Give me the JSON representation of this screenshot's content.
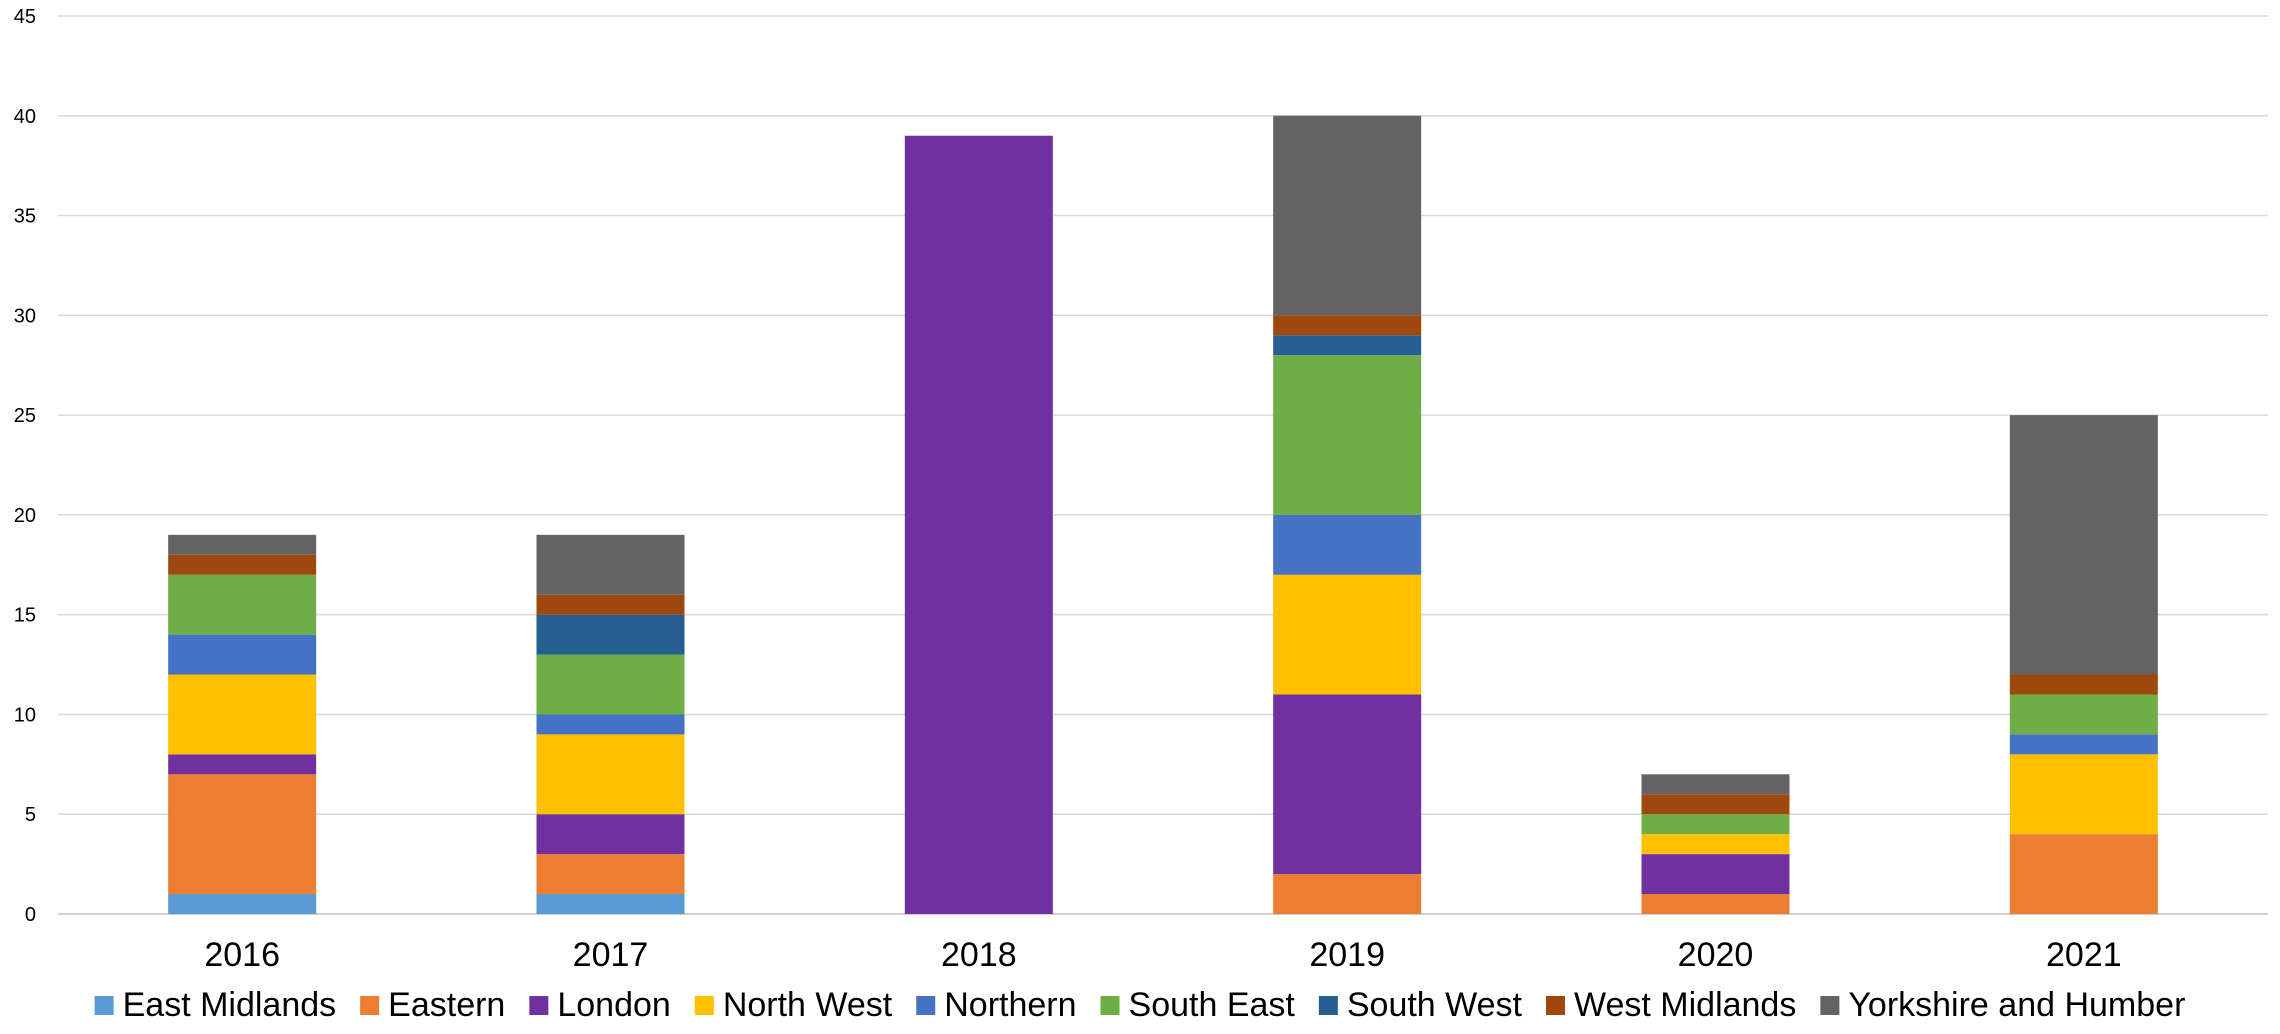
{
  "chart_data": {
    "type": "bar",
    "stacked": true,
    "title": "",
    "xlabel": "",
    "ylabel": "",
    "categories": [
      "2016",
      "2017",
      "2018",
      "2019",
      "2020",
      "2021"
    ],
    "ylim": [
      0,
      45
    ],
    "yticks": [
      0,
      5,
      10,
      15,
      20,
      25,
      30,
      35,
      40,
      45
    ],
    "grid": "horizontal",
    "legend_position": "bottom",
    "series": [
      {
        "name": "East Midlands",
        "color": "#5B9BD5",
        "values": [
          1,
          1,
          0,
          0,
          0,
          0
        ]
      },
      {
        "name": "Eastern",
        "color": "#ED7D31",
        "values": [
          6,
          2,
          0,
          2,
          1,
          4
        ]
      },
      {
        "name": "London",
        "color": "#7030A0",
        "values": [
          1,
          2,
          39,
          9,
          2,
          0
        ]
      },
      {
        "name": "North West",
        "color": "#FFC000",
        "values": [
          4,
          4,
          0,
          6,
          1,
          4
        ]
      },
      {
        "name": "Northern",
        "color": "#4472C4",
        "values": [
          2,
          1,
          0,
          3,
          0,
          1
        ]
      },
      {
        "name": "South East",
        "color": "#70AD47",
        "values": [
          3,
          3,
          0,
          8,
          1,
          2
        ]
      },
      {
        "name": "South West",
        "color": "#255E91",
        "values": [
          0,
          2,
          0,
          1,
          0,
          0
        ]
      },
      {
        "name": "West Midlands",
        "color": "#9E480E",
        "values": [
          1,
          1,
          0,
          1,
          1,
          1
        ]
      },
      {
        "name": "Yorkshire and Humber",
        "color": "#636363",
        "values": [
          1,
          3,
          0,
          10,
          1,
          13
        ]
      }
    ]
  }
}
